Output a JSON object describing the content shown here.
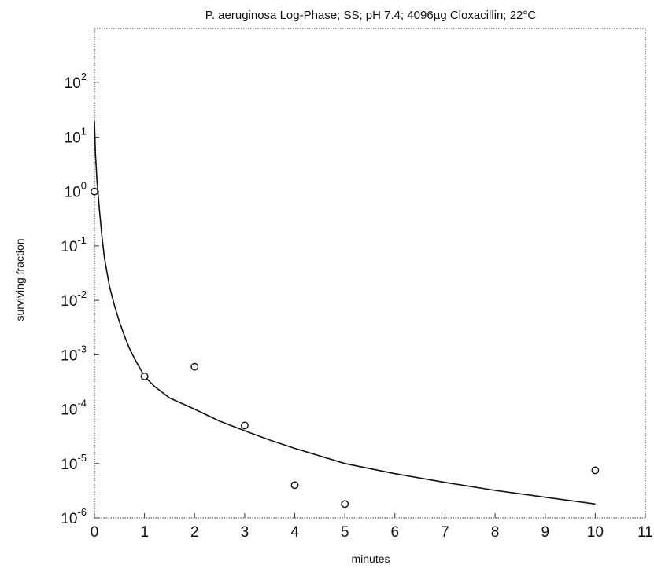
{
  "chart_data": {
    "type": "scatter",
    "title": "P. aeruginosa Log-Phase; SS; pH 7.4; 4096µg Cloxacillin; 22°C",
    "xlabel": "minutes",
    "ylabel": "surviving fraction",
    "xlim": [
      0,
      11
    ],
    "ylim": [
      1e-06,
      1000
    ],
    "yscale": "log",
    "grid": false,
    "x_ticks": [
      "0",
      "1",
      "2",
      "3",
      "4",
      "5",
      "6",
      "7",
      "8",
      "9",
      "10",
      "11"
    ],
    "y_ticks": [
      {
        "base": "10",
        "exp": "-6"
      },
      {
        "base": "10",
        "exp": "-5"
      },
      {
        "base": "10",
        "exp": "-4"
      },
      {
        "base": "10",
        "exp": "-3"
      },
      {
        "base": "10",
        "exp": "-2"
      },
      {
        "base": "10",
        "exp": "-1"
      },
      {
        "base": "10",
        "exp": "0"
      },
      {
        "base": "10",
        "exp": "1"
      },
      {
        "base": "10",
        "exp": "2"
      }
    ],
    "series": [
      {
        "kind": "points",
        "marker": "open-circle",
        "x": [
          0,
          1,
          2,
          3,
          4,
          5,
          10
        ],
        "y": [
          1.0,
          0.0004,
          0.0006,
          5e-05,
          4e-06,
          1.8e-06,
          7.5e-06
        ]
      },
      {
        "kind": "fitted-curve",
        "x": [
          0,
          0.02,
          0.05,
          0.1,
          0.15,
          0.2,
          0.3,
          0.4,
          0.5,
          0.6,
          0.7,
          0.8,
          1.0,
          1.2,
          1.5,
          2,
          2.5,
          3,
          3.5,
          4,
          5,
          6,
          7,
          8,
          9,
          10
        ],
        "y": [
          20,
          5,
          1.6,
          0.45,
          0.15,
          0.06,
          0.018,
          0.008,
          0.004,
          0.0022,
          0.0013,
          0.00085,
          0.0004,
          0.00026,
          0.00016,
          0.0001,
          6e-05,
          4e-05,
          2.7e-05,
          1.9e-05,
          1e-05,
          6.5e-06,
          4.5e-06,
          3.2e-06,
          2.4e-06,
          1.8e-06
        ]
      }
    ]
  }
}
